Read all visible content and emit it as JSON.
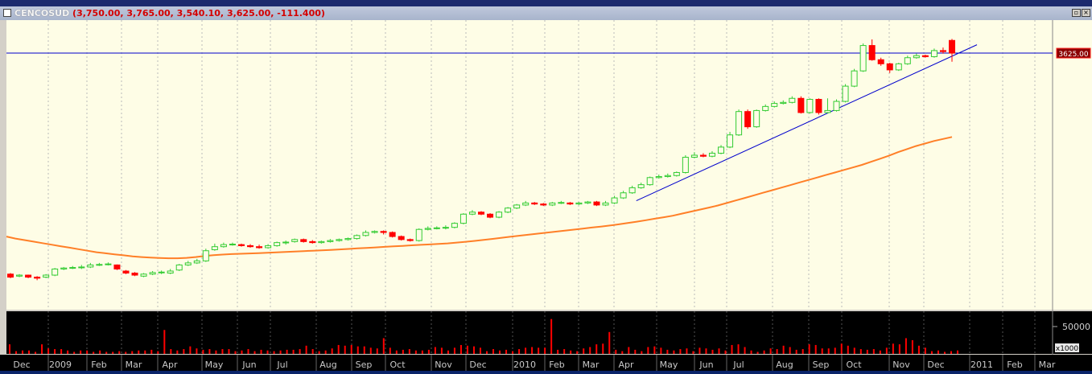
{
  "window": {
    "symbol": "CENCOSUD",
    "ohlc_summary": "(3,750.00, 3,765.00, 3,540.10, 3,625.00, -111.400)",
    "buttons": [
      "restore",
      "close"
    ]
  },
  "colors": {
    "chart_bg": "#fefde6",
    "volume_bg": "#000000",
    "up_candle": "#33cc33",
    "down_candle": "#ff0000",
    "moving_average": "#ff7f27",
    "trend_line": "#0000cc",
    "price_line": "#0000cc",
    "volume_bar": "#ff0000",
    "price_tag_bg": "#8b0000"
  },
  "price_tag": "3625.00",
  "volume_axis": {
    "label": "50000",
    "unit": "x1000"
  },
  "x_axis_labels": [
    "Dec",
    "2009",
    "Feb",
    "Mar",
    "Apr",
    "May",
    "Jun",
    "Jul",
    "Aug",
    "Sep",
    "Oct",
    "Nov",
    "Dec",
    "2010",
    "Feb",
    "Mar",
    "Apr",
    "May",
    "Jun",
    "Jul",
    "Aug",
    "Sep",
    "Oct",
    "Nov",
    "Dec",
    "2011",
    "Feb",
    "Mar"
  ],
  "chart_data": {
    "type": "candlestick",
    "price_line_value": 3625.0,
    "candles": [
      {
        "o": 1450,
        "c": 1420,
        "h": 1460,
        "l": 1410
      },
      {
        "o": 1430,
        "c": 1440,
        "h": 1450,
        "l": 1420
      },
      {
        "o": 1440,
        "c": 1420,
        "h": 1445,
        "l": 1410
      },
      {
        "o": 1420,
        "c": 1410,
        "h": 1430,
        "l": 1390
      },
      {
        "o": 1420,
        "c": 1440,
        "h": 1450,
        "l": 1410
      },
      {
        "o": 1440,
        "c": 1500,
        "h": 1510,
        "l": 1430
      },
      {
        "o": 1500,
        "c": 1510,
        "h": 1520,
        "l": 1490
      },
      {
        "o": 1510,
        "c": 1515,
        "h": 1530,
        "l": 1500
      },
      {
        "o": 1515,
        "c": 1520,
        "h": 1540,
        "l": 1500
      },
      {
        "o": 1520,
        "c": 1540,
        "h": 1560,
        "l": 1510
      },
      {
        "o": 1540,
        "c": 1545,
        "h": 1560,
        "l": 1530
      },
      {
        "o": 1545,
        "c": 1550,
        "h": 1565,
        "l": 1535
      },
      {
        "o": 1540,
        "c": 1500,
        "h": 1545,
        "l": 1490
      },
      {
        "o": 1480,
        "c": 1460,
        "h": 1490,
        "l": 1450
      },
      {
        "o": 1460,
        "c": 1440,
        "h": 1470,
        "l": 1430
      },
      {
        "o": 1430,
        "c": 1450,
        "h": 1460,
        "l": 1420
      },
      {
        "o": 1450,
        "c": 1465,
        "h": 1480,
        "l": 1440
      },
      {
        "o": 1465,
        "c": 1470,
        "h": 1485,
        "l": 1450
      },
      {
        "o": 1460,
        "c": 1480,
        "h": 1500,
        "l": 1450
      },
      {
        "o": 1490,
        "c": 1540,
        "h": 1550,
        "l": 1480
      },
      {
        "o": 1540,
        "c": 1560,
        "h": 1580,
        "l": 1530
      },
      {
        "o": 1560,
        "c": 1580,
        "h": 1600,
        "l": 1550
      },
      {
        "o": 1580,
        "c": 1680,
        "h": 1700,
        "l": 1570
      },
      {
        "o": 1690,
        "c": 1720,
        "h": 1750,
        "l": 1680
      },
      {
        "o": 1720,
        "c": 1740,
        "h": 1760,
        "l": 1710
      },
      {
        "o": 1740,
        "c": 1745,
        "h": 1760,
        "l": 1730
      },
      {
        "o": 1740,
        "c": 1730,
        "h": 1750,
        "l": 1720
      },
      {
        "o": 1730,
        "c": 1720,
        "h": 1745,
        "l": 1710
      },
      {
        "o": 1720,
        "c": 1710,
        "h": 1740,
        "l": 1700
      },
      {
        "o": 1710,
        "c": 1730,
        "h": 1745,
        "l": 1700
      },
      {
        "o": 1730,
        "c": 1760,
        "h": 1770,
        "l": 1720
      },
      {
        "o": 1760,
        "c": 1765,
        "h": 1780,
        "l": 1740
      },
      {
        "o": 1770,
        "c": 1790,
        "h": 1800,
        "l": 1760
      },
      {
        "o": 1790,
        "c": 1770,
        "h": 1800,
        "l": 1760
      },
      {
        "o": 1770,
        "c": 1760,
        "h": 1785,
        "l": 1750
      },
      {
        "o": 1760,
        "c": 1770,
        "h": 1780,
        "l": 1750
      },
      {
        "o": 1770,
        "c": 1780,
        "h": 1795,
        "l": 1760
      },
      {
        "o": 1780,
        "c": 1790,
        "h": 1800,
        "l": 1770
      },
      {
        "o": 1790,
        "c": 1800,
        "h": 1810,
        "l": 1780
      },
      {
        "o": 1800,
        "c": 1830,
        "h": 1840,
        "l": 1790
      },
      {
        "o": 1830,
        "c": 1860,
        "h": 1880,
        "l": 1820
      },
      {
        "o": 1860,
        "c": 1870,
        "h": 1880,
        "l": 1850
      },
      {
        "o": 1870,
        "c": 1860,
        "h": 1880,
        "l": 1840
      },
      {
        "o": 1860,
        "c": 1820,
        "h": 1870,
        "l": 1810
      },
      {
        "o": 1820,
        "c": 1790,
        "h": 1830,
        "l": 1780
      },
      {
        "o": 1790,
        "c": 1780,
        "h": 1800,
        "l": 1770
      },
      {
        "o": 1780,
        "c": 1890,
        "h": 1900,
        "l": 1770
      },
      {
        "o": 1890,
        "c": 1900,
        "h": 1920,
        "l": 1880
      },
      {
        "o": 1900,
        "c": 1905,
        "h": 1920,
        "l": 1890
      },
      {
        "o": 1905,
        "c": 1910,
        "h": 1930,
        "l": 1890
      },
      {
        "o": 1910,
        "c": 1950,
        "h": 1960,
        "l": 1900
      },
      {
        "o": 1950,
        "c": 2040,
        "h": 2050,
        "l": 1940
      },
      {
        "o": 2040,
        "c": 2060,
        "h": 2080,
        "l": 2030
      },
      {
        "o": 2060,
        "c": 2040,
        "h": 2070,
        "l": 2030
      },
      {
        "o": 2040,
        "c": 2010,
        "h": 2050,
        "l": 2000
      },
      {
        "o": 2010,
        "c": 2060,
        "h": 2070,
        "l": 2000
      },
      {
        "o": 2060,
        "c": 2100,
        "h": 2110,
        "l": 2050
      },
      {
        "o": 2100,
        "c": 2130,
        "h": 2140,
        "l": 2090
      },
      {
        "o": 2130,
        "c": 2150,
        "h": 2170,
        "l": 2120
      },
      {
        "o": 2150,
        "c": 2140,
        "h": 2160,
        "l": 2130
      },
      {
        "o": 2140,
        "c": 2130,
        "h": 2150,
        "l": 2120
      },
      {
        "o": 2130,
        "c": 2150,
        "h": 2160,
        "l": 2120
      },
      {
        "o": 2150,
        "c": 2155,
        "h": 2170,
        "l": 2140
      },
      {
        "o": 2150,
        "c": 2140,
        "h": 2160,
        "l": 2130
      },
      {
        "o": 2140,
        "c": 2150,
        "h": 2160,
        "l": 2130
      },
      {
        "o": 2150,
        "c": 2160,
        "h": 2170,
        "l": 2140
      },
      {
        "o": 2160,
        "c": 2130,
        "h": 2170,
        "l": 2120
      },
      {
        "o": 2130,
        "c": 2150,
        "h": 2170,
        "l": 2120
      },
      {
        "o": 2150,
        "c": 2200,
        "h": 2220,
        "l": 2140
      },
      {
        "o": 2200,
        "c": 2250,
        "h": 2270,
        "l": 2190
      },
      {
        "o": 2250,
        "c": 2300,
        "h": 2320,
        "l": 2240
      },
      {
        "o": 2300,
        "c": 2330,
        "h": 2350,
        "l": 2290
      },
      {
        "o": 2330,
        "c": 2400,
        "h": 2410,
        "l": 2320
      },
      {
        "o": 2400,
        "c": 2410,
        "h": 2430,
        "l": 2390
      },
      {
        "o": 2410,
        "c": 2420,
        "h": 2440,
        "l": 2400
      },
      {
        "o": 2420,
        "c": 2450,
        "h": 2460,
        "l": 2410
      },
      {
        "o": 2450,
        "c": 2600,
        "h": 2620,
        "l": 2440
      },
      {
        "o": 2600,
        "c": 2620,
        "h": 2650,
        "l": 2590
      },
      {
        "o": 2620,
        "c": 2610,
        "h": 2640,
        "l": 2600
      },
      {
        "o": 2610,
        "c": 2640,
        "h": 2660,
        "l": 2600
      },
      {
        "o": 2640,
        "c": 2700,
        "h": 2720,
        "l": 2630
      },
      {
        "o": 2700,
        "c": 2820,
        "h": 2850,
        "l": 2690
      },
      {
        "o": 2820,
        "c": 3050,
        "h": 3070,
        "l": 2810
      },
      {
        "o": 3050,
        "c": 2900,
        "h": 3070,
        "l": 2880
      },
      {
        "o": 2900,
        "c": 3060,
        "h": 3070,
        "l": 2890
      },
      {
        "o": 3060,
        "c": 3100,
        "h": 3120,
        "l": 3050
      },
      {
        "o": 3100,
        "c": 3130,
        "h": 3150,
        "l": 3090
      },
      {
        "o": 3130,
        "c": 3140,
        "h": 3160,
        "l": 3120
      },
      {
        "o": 3140,
        "c": 3180,
        "h": 3200,
        "l": 3130
      },
      {
        "o": 3180,
        "c": 3040,
        "h": 3200,
        "l": 3030
      },
      {
        "o": 3040,
        "c": 3170,
        "h": 3180,
        "l": 3030
      },
      {
        "o": 3170,
        "c": 3040,
        "h": 3180,
        "l": 3020
      },
      {
        "o": 3040,
        "c": 3060,
        "h": 3180,
        "l": 3030
      },
      {
        "o": 3060,
        "c": 3150,
        "h": 3170,
        "l": 3050
      },
      {
        "o": 3150,
        "c": 3300,
        "h": 3320,
        "l": 3140
      },
      {
        "o": 3300,
        "c": 3450,
        "h": 3470,
        "l": 3290
      },
      {
        "o": 3450,
        "c": 3700,
        "h": 3720,
        "l": 3440
      },
      {
        "o": 3700,
        "c": 3560,
        "h": 3760,
        "l": 3550
      },
      {
        "o": 3560,
        "c": 3520,
        "h": 3580,
        "l": 3500
      },
      {
        "o": 3520,
        "c": 3460,
        "h": 3530,
        "l": 3430
      },
      {
        "o": 3460,
        "c": 3520,
        "h": 3530,
        "l": 3450
      },
      {
        "o": 3520,
        "c": 3580,
        "h": 3600,
        "l": 3510
      },
      {
        "o": 3580,
        "c": 3600,
        "h": 3620,
        "l": 3570
      },
      {
        "o": 3600,
        "c": 3590,
        "h": 3610,
        "l": 3580
      },
      {
        "o": 3590,
        "c": 3650,
        "h": 3670,
        "l": 3580
      },
      {
        "o": 3650,
        "c": 3640,
        "h": 3680,
        "l": 3620
      },
      {
        "o": 3750,
        "c": 3625,
        "h": 3765,
        "l": 3540
      }
    ],
    "moving_average": [
      1820,
      1800,
      1785,
      1770,
      1755,
      1740,
      1725,
      1710,
      1695,
      1680,
      1665,
      1655,
      1645,
      1635,
      1625,
      1618,
      1612,
      1608,
      1606,
      1606,
      1610,
      1618,
      1628,
      1636,
      1642,
      1647,
      1650,
      1653,
      1656,
      1660,
      1664,
      1668,
      1672,
      1676,
      1680,
      1684,
      1688,
      1693,
      1698,
      1703,
      1708,
      1713,
      1718,
      1723,
      1728,
      1733,
      1738,
      1742,
      1747,
      1752,
      1760,
      1768,
      1777,
      1787,
      1797,
      1808,
      1818,
      1828,
      1838,
      1848,
      1858,
      1868,
      1878,
      1888,
      1898,
      1908,
      1918,
      1928,
      1940,
      1953,
      1966,
      1980,
      1995,
      2010,
      2025,
      2045,
      2065,
      2085,
      2105,
      2125,
      2150,
      2175,
      2200,
      2225,
      2250,
      2275,
      2300,
      2325,
      2350,
      2375,
      2400,
      2425,
      2450,
      2475,
      2500,
      2525,
      2555,
      2585,
      2615,
      2650,
      2680,
      2710,
      2735,
      2760,
      2780,
      2800
    ],
    "trend_line": [
      {
        "i": 73,
        "v": 2220
      },
      {
        "i": 107,
        "v": 3660
      }
    ],
    "volume": [
      14,
      4,
      5,
      5,
      3,
      14,
      8,
      7,
      7,
      5,
      3,
      5,
      5,
      3,
      5,
      3,
      3,
      4,
      3,
      4,
      5,
      5,
      6,
      4,
      35,
      7,
      5,
      7,
      11,
      8,
      6,
      7,
      5,
      7,
      7,
      4,
      5,
      7,
      4,
      6,
      5,
      4,
      5,
      6,
      6,
      7,
      12,
      7,
      4,
      5,
      8,
      13,
      12,
      13,
      11,
      11,
      9,
      8,
      23,
      9,
      5,
      6,
      7,
      5,
      5,
      6,
      10,
      9,
      5,
      9,
      13,
      12,
      11,
      9,
      4,
      7,
      5,
      6,
      4,
      7,
      9,
      10,
      9,
      9,
      51,
      6,
      7,
      5,
      4,
      8,
      10,
      14,
      15,
      32,
      6,
      4,
      10,
      6,
      4,
      10,
      11,
      9,
      6,
      5,
      7,
      8,
      4,
      9,
      8,
      6,
      8,
      5,
      13,
      14,
      10,
      5,
      3,
      5,
      8,
      7,
      12,
      10,
      6,
      7,
      14,
      13,
      8,
      8,
      9,
      15,
      12,
      9,
      7,
      6,
      7,
      5,
      9,
      15,
      14,
      23,
      20,
      12,
      9,
      4,
      5,
      3,
      4,
      5
    ],
    "price_range": [
      1100,
      3950
    ]
  }
}
